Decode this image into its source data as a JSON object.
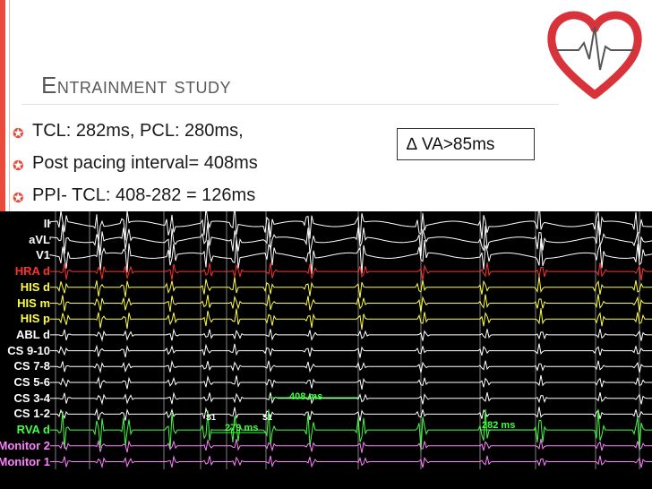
{
  "slide": {
    "title": "Entrainment study",
    "bullets": [
      "TCL: 282ms, PCL: 280ms,",
      "Post pacing interval= 408ms",
      "PPI- TCL: 408-282 = 126ms"
    ],
    "callout": "∆ VA>85ms"
  },
  "tracing": {
    "channels": [
      {
        "name": "II",
        "color": "#ffffff"
      },
      {
        "name": "aVL",
        "color": "#ffffff"
      },
      {
        "name": "V1",
        "color": "#ffffff"
      },
      {
        "name": "HRA d",
        "color": "#ff3030"
      },
      {
        "name": "HIS d",
        "color": "#ffff40"
      },
      {
        "name": "HIS m",
        "color": "#ffff40"
      },
      {
        "name": "HIS p",
        "color": "#ffff40"
      },
      {
        "name": "ABL d",
        "color": "#ffffff"
      },
      {
        "name": "CS 9-10",
        "color": "#ffffff"
      },
      {
        "name": "CS 7-8",
        "color": "#ffffff"
      },
      {
        "name": "CS 5-6",
        "color": "#ffffff"
      },
      {
        "name": "CS 3-4",
        "color": "#ffffff"
      },
      {
        "name": "CS 1-2",
        "color": "#ffffff"
      },
      {
        "name": "RVA d",
        "color": "#40ff40"
      },
      {
        "name": "Monitor 2",
        "color": "#ff80ff"
      },
      {
        "name": "Monitor 1",
        "color": "#ff80ff"
      }
    ],
    "measurements": {
      "ppi": "408 ms",
      "pacing": "279 ms",
      "tcl": "282 ms",
      "s1a": "S1",
      "s1b": "S1"
    }
  },
  "colors": {
    "accent": "#e94b3c",
    "title": "#595959",
    "measure": "#40ff40"
  }
}
